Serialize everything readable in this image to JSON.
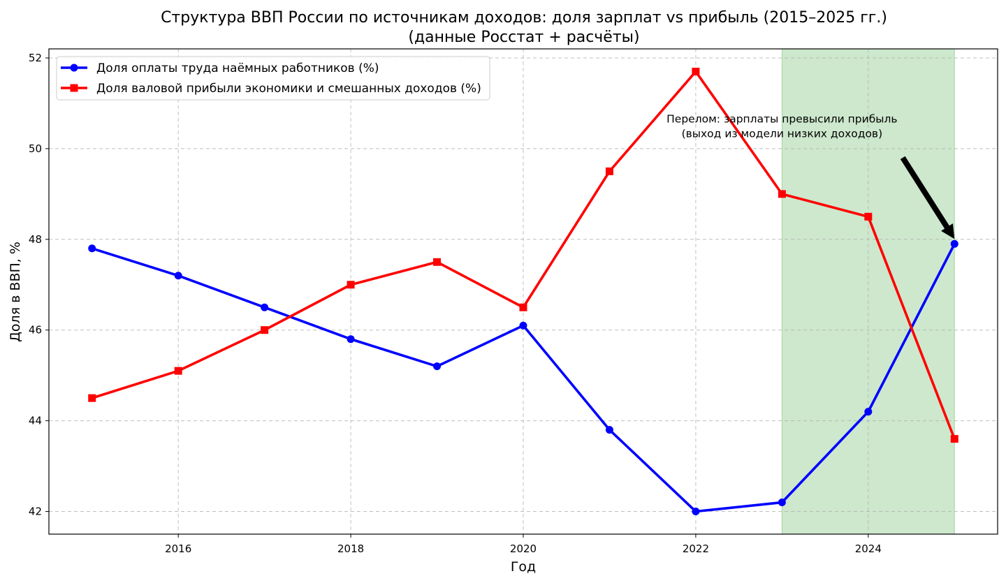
{
  "chart_data": {
    "type": "line",
    "title": "Структура ВВП России по источникам доходов: доля зарплат vs прибыль (2015–2025 гг.)",
    "subtitle": "(данные Росстат + расчёты)",
    "xlabel": "Год",
    "ylabel": "Доля в ВВП, %",
    "x": [
      2015,
      2016,
      2017,
      2018,
      2019,
      2020,
      2021,
      2022,
      2023,
      2024,
      2025
    ],
    "xlim": [
      2014.5,
      2025.5
    ],
    "ylim": [
      41.5,
      52.2
    ],
    "xticks": [
      2016,
      2018,
      2020,
      2022,
      2024
    ],
    "yticks": [
      42,
      44,
      46,
      48,
      50,
      52
    ],
    "grid": true,
    "legend_position": "top-left",
    "series": [
      {
        "name": "Доля оплаты труда наёмных работников (%)",
        "color": "#0000ff",
        "marker": "circle",
        "values": [
          47.8,
          47.2,
          46.5,
          45.8,
          45.2,
          46.1,
          43.8,
          42.0,
          42.2,
          44.2,
          47.9
        ]
      },
      {
        "name": "Доля валовой прибыли экономики и смешанных доходов (%)",
        "color": "#ff0000",
        "marker": "square",
        "values": [
          44.5,
          45.1,
          46.0,
          47.0,
          47.5,
          46.5,
          49.5,
          51.7,
          49.0,
          48.5,
          43.6
        ]
      }
    ],
    "highlight_span": {
      "x_from": 2023,
      "x_to": 2025,
      "color": "#2ca02c"
    },
    "annotation": {
      "lines": [
        "Перелом: зарплаты превысили прибыль",
        "(выход из модели низких доходов)"
      ],
      "text_x": 2023,
      "text_y": 50.3,
      "arrow_from_x": 2024.4,
      "arrow_from_y": 49.8,
      "arrow_to_x": 2025,
      "arrow_to_y": 47.9
    }
  }
}
